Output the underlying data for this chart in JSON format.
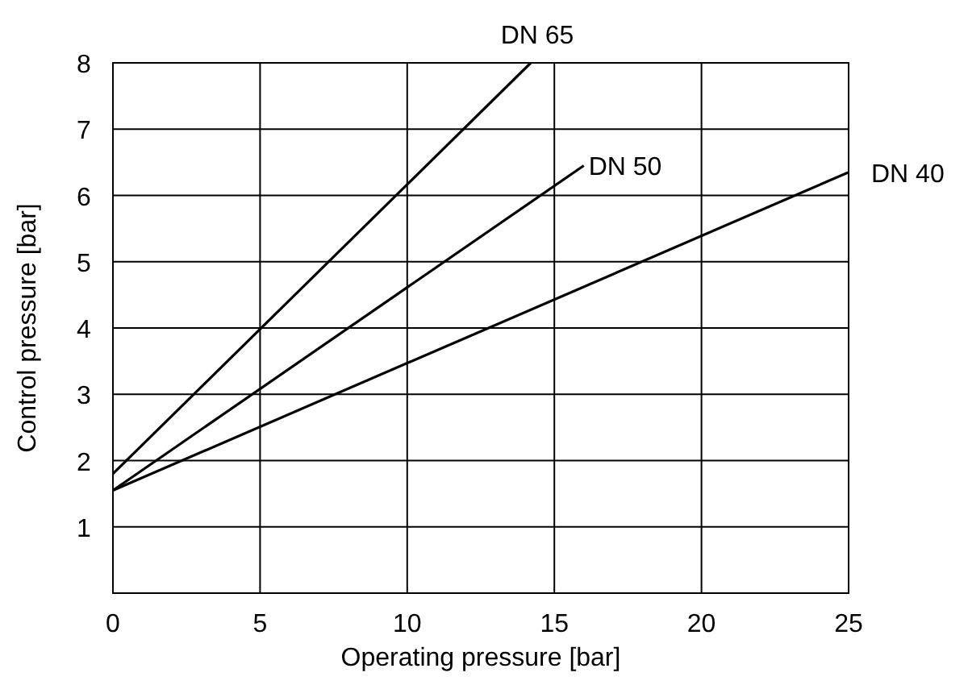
{
  "chart_data": {
    "type": "line",
    "xlabel": "Operating pressure [bar]",
    "ylabel": "Control pressure [bar]",
    "xlim": [
      0,
      25
    ],
    "ylim": [
      0,
      8
    ],
    "xticks": [
      0,
      5,
      10,
      15,
      20,
      25
    ],
    "yticks": [
      1,
      2,
      3,
      4,
      5,
      6,
      7,
      8
    ],
    "grid": true,
    "marker": "none",
    "line_style": "solid",
    "series": [
      {
        "name": "DN 65",
        "color": "#000000",
        "x": [
          0,
          14.2
        ],
        "values": [
          1.8,
          8
        ]
      },
      {
        "name": "DN 50",
        "color": "#000000",
        "x": [
          0,
          16
        ],
        "values": [
          1.55,
          6.45
        ]
      },
      {
        "name": "DN 40",
        "color": "#000000",
        "x": [
          0,
          25
        ],
        "values": [
          1.55,
          6.35
        ]
      }
    ]
  }
}
